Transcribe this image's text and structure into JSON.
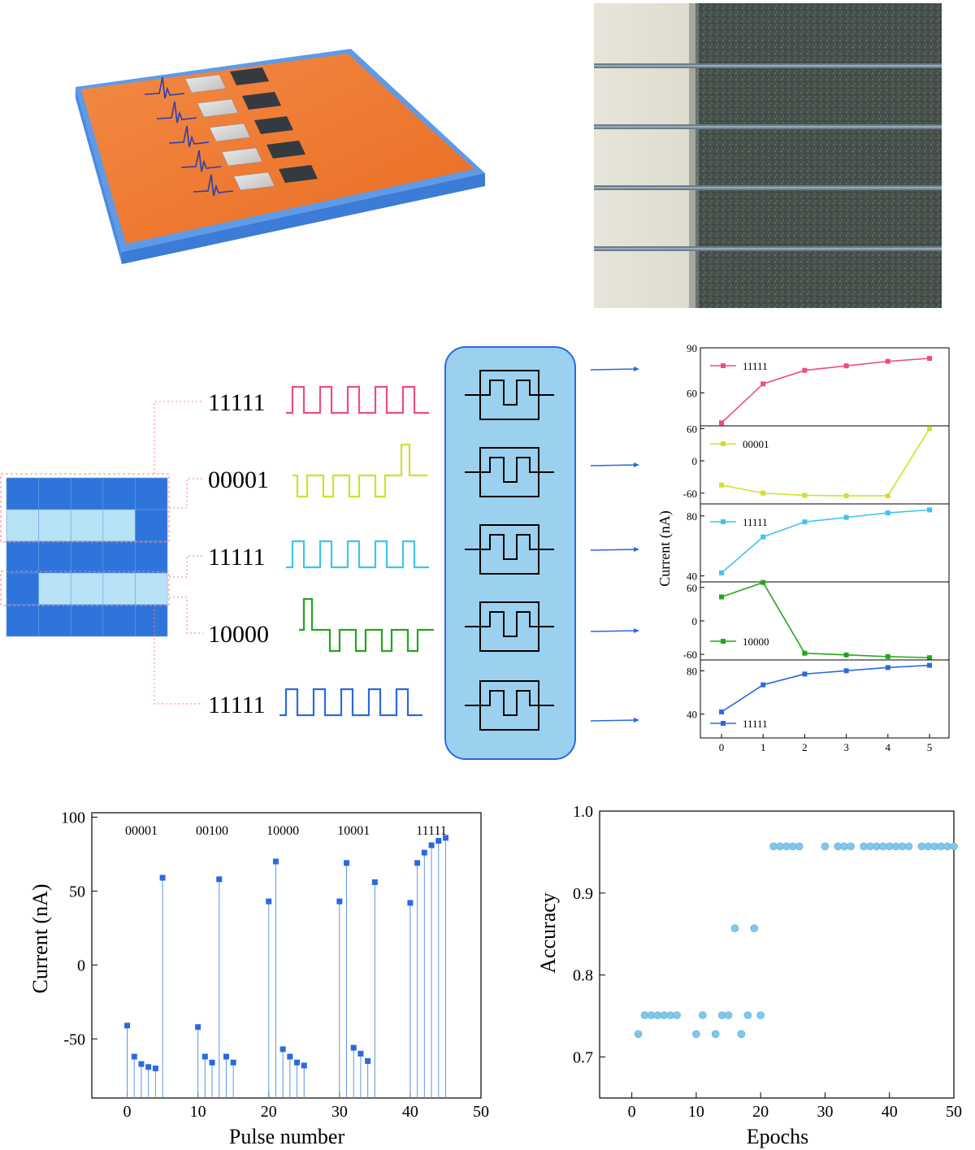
{
  "panel_top_left": {
    "label": ""
  },
  "encoding": {
    "codes": [
      "11111",
      "00001",
      "11111",
      "10000",
      "11111"
    ],
    "colors": [
      "#ee4d7e",
      "#d2df2e",
      "#3fc4ec",
      "#22a61c",
      "#2b69e0"
    ],
    "bits": [
      [
        1,
        1,
        1,
        1,
        1
      ],
      [
        0,
        0,
        0,
        0,
        1
      ],
      [
        1,
        1,
        1,
        1,
        1
      ],
      [
        1,
        0,
        0,
        0,
        0
      ],
      [
        1,
        1,
        1,
        1,
        1
      ]
    ]
  },
  "chart_data": [
    {
      "type": "line",
      "id": "stacked_response",
      "ylabel": "Current (nA)",
      "xlabel": "",
      "x": [
        0,
        1,
        2,
        3,
        4,
        5
      ],
      "xticks": [
        "0",
        "1",
        "2",
        "3",
        "4",
        "5"
      ],
      "panels": [
        {
          "name": "11111",
          "color": "#ee4d7e",
          "values": [
            40,
            66,
            75,
            78,
            81,
            83
          ],
          "ylim": [
            38,
            90
          ],
          "yticks": [
            "90",
            "60"
          ],
          "ytick_vals": [
            90,
            60
          ]
        },
        {
          "name": "00001",
          "color": "#d2df2e",
          "values": [
            -45,
            -60,
            -64,
            -65,
            -65,
            60
          ],
          "ylim": [
            -80,
            65
          ],
          "yticks": [
            "60",
            "0",
            "-60"
          ],
          "ytick_vals": [
            60,
            0,
            -60
          ]
        },
        {
          "name": "11111",
          "color": "#3fc4ec",
          "values": [
            42,
            66,
            76,
            79,
            82,
            84
          ],
          "ylim": [
            36,
            88
          ],
          "yticks": [
            "80",
            "40"
          ],
          "ytick_vals": [
            80,
            40
          ]
        },
        {
          "name": "10000",
          "color": "#22a61c",
          "values": [
            43,
            69,
            -58,
            -61,
            -64,
            -66
          ],
          "ylim": [
            -70,
            70
          ],
          "yticks": [
            "60",
            "0",
            "-60"
          ],
          "ytick_vals": [
            60,
            0,
            -60
          ]
        },
        {
          "name": "11111",
          "color": "#2b69e0",
          "values": [
            42,
            67,
            77,
            80,
            83,
            85
          ],
          "ylim": [
            18,
            90
          ],
          "yticks": [
            "80",
            "40"
          ],
          "ytick_vals": [
            80,
            40
          ]
        }
      ]
    },
    {
      "type": "scatter",
      "id": "pulse_response",
      "xlabel": "Pulse  number",
      "ylabel": "Current (nA)",
      "xlim": [
        -5,
        50
      ],
      "ylim": [
        -90,
        103
      ],
      "xticks": [
        "0",
        "10",
        "20",
        "30",
        "40",
        "50"
      ],
      "xtick_vals": [
        0,
        10,
        20,
        30,
        40,
        50
      ],
      "yticks": [
        "100",
        "50",
        "0",
        "-50"
      ],
      "ytick_vals": [
        100,
        50,
        0,
        -50
      ],
      "group_labels": [
        {
          "text": "00001",
          "x": 2
        },
        {
          "text": "00100",
          "x": 12
        },
        {
          "text": "10000",
          "x": 22
        },
        {
          "text": "10001",
          "x": 32
        },
        {
          "text": "11111",
          "x": 43
        }
      ],
      "x": [
        0,
        1,
        2,
        3,
        4,
        5,
        10,
        11,
        12,
        13,
        14,
        15,
        20,
        21,
        22,
        23,
        24,
        25,
        30,
        31,
        32,
        33,
        34,
        35,
        40,
        41,
        42,
        43,
        44,
        45
      ],
      "y": [
        -41,
        -62,
        -67,
        -69,
        -70,
        59,
        -42,
        -62,
        -66,
        58,
        -62,
        -66,
        43,
        70,
        -57,
        -62,
        -66,
        -68,
        43,
        69,
        -56,
        -60,
        -65,
        56,
        42,
        69,
        76,
        81,
        84,
        86
      ],
      "color": "#2b69e0"
    },
    {
      "type": "scatter",
      "id": "accuracy",
      "xlabel": "Epochs",
      "ylabel": "Accuracy",
      "xlim": [
        -5,
        50
      ],
      "ylim": [
        0.65,
        1.0
      ],
      "xticks": [
        "0",
        "10",
        "20",
        "30",
        "40",
        "50"
      ],
      "xtick_vals": [
        0,
        10,
        20,
        30,
        40,
        50
      ],
      "yticks": [
        "1.0",
        "0.9",
        "0.8",
        "0.7"
      ],
      "ytick_vals": [
        1.0,
        0.9,
        0.8,
        0.7
      ],
      "x": [
        1,
        2,
        3,
        4,
        5,
        6,
        7,
        10,
        11,
        13,
        14,
        15,
        16,
        17,
        18,
        19,
        20,
        22,
        23,
        24,
        25,
        26,
        30,
        32,
        33,
        34,
        36,
        37,
        38,
        39,
        40,
        41,
        42,
        43,
        45,
        46,
        47,
        48,
        49,
        50
      ],
      "y": [
        0.728,
        0.751,
        0.751,
        0.751,
        0.751,
        0.751,
        0.751,
        0.728,
        0.751,
        0.728,
        0.751,
        0.751,
        0.857,
        0.728,
        0.751,
        0.857,
        0.751,
        0.957,
        0.957,
        0.957,
        0.957,
        0.957,
        0.957,
        0.957,
        0.957,
        0.957,
        0.957,
        0.957,
        0.957,
        0.957,
        0.957,
        0.957,
        0.957,
        0.957,
        0.957,
        0.957,
        0.957,
        0.957,
        0.957,
        0.957
      ],
      "color": "#7fc8ec"
    }
  ]
}
